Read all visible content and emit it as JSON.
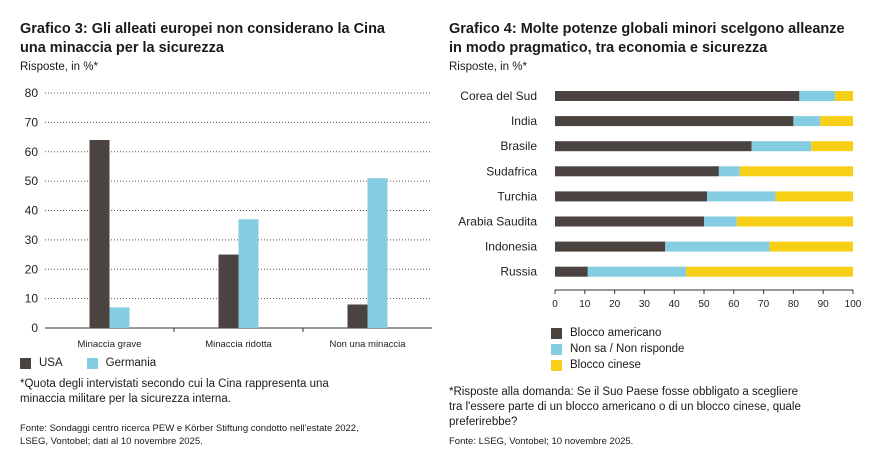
{
  "colors": {
    "dark": "#4a4340",
    "light": "#85cde2",
    "yellow": "#f7cf16"
  },
  "left": {
    "title_line1": "Grafico 3: Gli alleati europei non considerano la Cina",
    "title_line2": "una minaccia per la sicurezza",
    "unit": "Risposte, in %*",
    "legend": [
      "USA",
      "Germania"
    ],
    "note_line1": "*Quota degli intervistati secondo cui la Cina rappresenta una",
    "note_line2": "minaccia militare per la sicurezza interna.",
    "source_line1": "Fonte: Sondaggi centro ricerca PEW e Körber Stiftung condotto nell'estate 2022,",
    "source_line2": "LSEG, Vontobel; dati al 10 novembre 2025."
  },
  "right": {
    "title_line1": "Grafico 4: Molte potenze globali minori scelgono alleanze",
    "title_line2": "in modo pragmatico, tra economia e sicurezza",
    "unit": "Risposte, in %*",
    "legend": [
      "Blocco americano",
      "Non sa / Non risponde",
      "Blocco cinese"
    ],
    "note_line1": "*Risposte alla domanda: Se il Suo Paese fosse obbligato a scegliere",
    "note_line2": "tra l'essere parte di un blocco americano o di un blocco cinese, quale",
    "note_line3": "preferirebbe?",
    "source": "Fonte: LSEG, Vontobel; 10 novembre 2025."
  },
  "chart_data": [
    {
      "type": "bar",
      "title": "Grafico 3: Gli alleati europei non considerano la Cina una minaccia per la sicurezza",
      "ylabel": "Risposte, in %*",
      "categories": [
        "Minaccia grave",
        "Minaccia ridotta",
        "Non una minaccia"
      ],
      "series": [
        {
          "name": "USA",
          "values": [
            64,
            25,
            8
          ]
        },
        {
          "name": "Germania",
          "values": [
            7,
            37,
            51
          ]
        }
      ],
      "ylim": [
        0,
        80
      ],
      "yticks": [
        0,
        10,
        20,
        30,
        40,
        50,
        60,
        70,
        80
      ],
      "grid": true,
      "legend": "bottom-left"
    },
    {
      "type": "bar",
      "orientation": "horizontal",
      "stacked": true,
      "title": "Grafico 4: Molte potenze globali minori scelgono alleanze in modo pragmatico, tra economia e sicurezza",
      "ylabel": "Risposte, in %*",
      "categories": [
        "Corea del Sud",
        "India",
        "Brasile",
        "Sudafrica",
        "Turchia",
        "Arabia Saudita",
        "Indonesia",
        "Russia"
      ],
      "series": [
        {
          "name": "Blocco americano",
          "values": [
            82,
            80,
            66,
            55,
            51,
            50,
            37,
            11
          ]
        },
        {
          "name": "Non sa / Non risponde",
          "values": [
            12,
            9,
            20,
            7,
            23,
            11,
            35,
            33
          ]
        },
        {
          "name": "Blocco cinese",
          "values": [
            6,
            11,
            14,
            38,
            26,
            39,
            28,
            56
          ]
        }
      ],
      "xlim": [
        0,
        100
      ],
      "xticks": [
        0,
        10,
        20,
        30,
        40,
        50,
        60,
        70,
        80,
        90,
        100
      ],
      "grid": false,
      "legend": "bottom-left"
    }
  ]
}
